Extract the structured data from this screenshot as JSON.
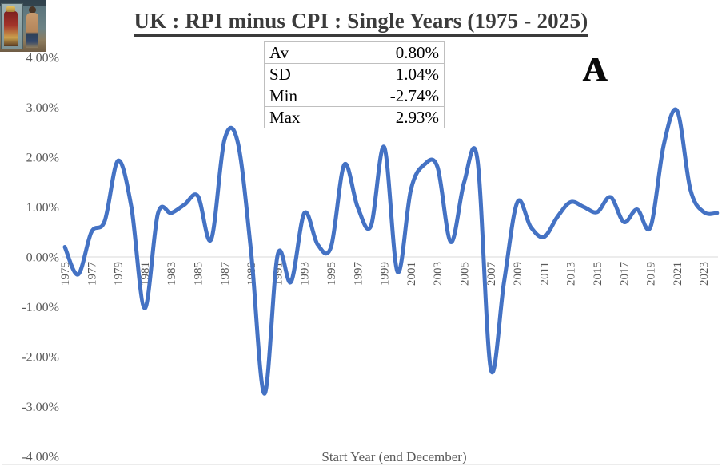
{
  "title": "UK : RPI minus CPI : Single Years (1975 - 2025)",
  "monogram": {
    "glyph": "A"
  },
  "stats_table": {
    "rows": [
      {
        "label": "Av",
        "value": "0.80%"
      },
      {
        "label": "SD",
        "value": "1.04%"
      },
      {
        "label": "Min",
        "value": "-2.74%"
      },
      {
        "label": "Max",
        "value": "2.93%"
      }
    ]
  },
  "chart_data": {
    "type": "line",
    "title": "UK : RPI minus CPI : Single Years (1975 - 2025)",
    "xlabel": "Start Year (end December)",
    "ylabel": "",
    "ylim": [
      -4,
      4
    ],
    "grid": "zero-line-only",
    "legend": "none",
    "smooth": true,
    "line_color": "#4472C4",
    "tick_color": "#595959",
    "gridline_color": "#d9d9d9",
    "y_ticks": [
      {
        "label": "4.00%",
        "value": 4
      },
      {
        "label": "3.00%",
        "value": 3
      },
      {
        "label": "2.00%",
        "value": 2
      },
      {
        "label": "1.00%",
        "value": 1
      },
      {
        "label": "0.00%",
        "value": 0
      },
      {
        "label": "-1.00%",
        "value": -1
      },
      {
        "label": "-2.00%",
        "value": -2
      },
      {
        "label": "-3.00%",
        "value": -3
      },
      {
        "label": "-4.00%",
        "value": -4
      }
    ],
    "x_tick_labels": [
      "1975",
      "1977",
      "1979",
      "1981",
      "1983",
      "1985",
      "1987",
      "1989",
      "1991",
      "1993",
      "1995",
      "1997",
      "1999",
      "2001",
      "2003",
      "2005",
      "2007",
      "2009",
      "2011",
      "2013",
      "2015",
      "2017",
      "2019",
      "2021",
      "2023"
    ],
    "x": [
      1975,
      1976,
      1977,
      1978,
      1979,
      1980,
      1981,
      1982,
      1983,
      1984,
      1985,
      1986,
      1987,
      1988,
      1989,
      1990,
      1991,
      1992,
      1993,
      1994,
      1995,
      1996,
      1997,
      1998,
      1999,
      2000,
      2001,
      2002,
      2003,
      2004,
      2005,
      2006,
      2007,
      2008,
      2009,
      2010,
      2011,
      2012,
      2013,
      2014,
      2015,
      2016,
      2017,
      2018,
      2019,
      2020,
      2021,
      2022,
      2023,
      2024
    ],
    "series": [
      {
        "name": "RPI minus CPI",
        "values": [
          0.2,
          -0.35,
          0.5,
          0.72,
          1.93,
          1.0,
          -1.03,
          0.87,
          0.88,
          1.05,
          1.22,
          0.35,
          2.35,
          2.3,
          0.1,
          -2.74,
          0.05,
          -0.5,
          0.88,
          0.25,
          0.2,
          1.85,
          1.0,
          0.62,
          2.2,
          -0.3,
          1.35,
          1.85,
          1.8,
          0.3,
          1.5,
          1.95,
          -2.25,
          -0.5,
          1.1,
          0.6,
          0.4,
          0.8,
          1.1,
          1.0,
          0.9,
          1.2,
          0.7,
          0.95,
          0.6,
          2.25,
          2.93,
          1.35,
          0.9,
          0.88
        ]
      }
    ]
  }
}
